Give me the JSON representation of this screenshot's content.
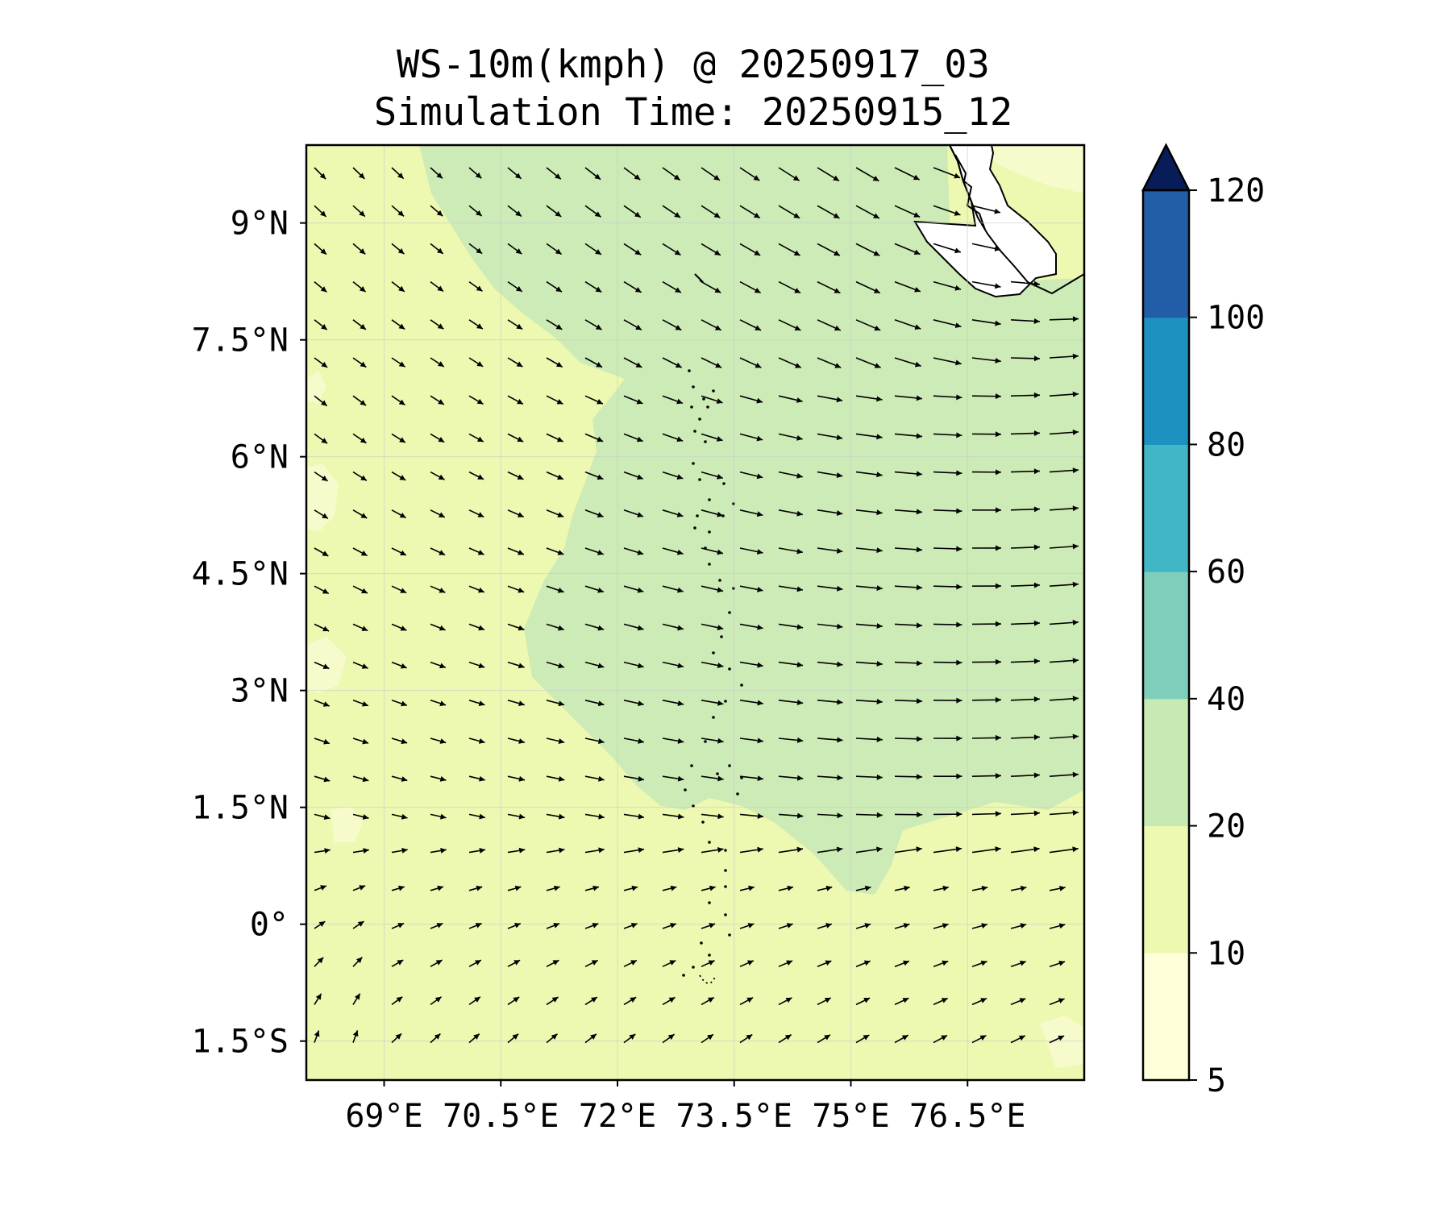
{
  "title": {
    "line1": "WS-10m(kmph) @ 20250917_03",
    "line2": "Simulation Time: 20250915_12"
  },
  "map": {
    "lon_range": [
      68.0,
      78.0
    ],
    "lat_range": [
      -2.0,
      10.0
    ],
    "x_ticks": [
      {
        "value": 69.0,
        "label": "69°E"
      },
      {
        "value": 70.5,
        "label": "70.5°E"
      },
      {
        "value": 72.0,
        "label": "72°E"
      },
      {
        "value": 73.5,
        "label": "73.5°E"
      },
      {
        "value": 75.0,
        "label": "75°E"
      },
      {
        "value": 76.5,
        "label": "76.5°E"
      }
    ],
    "y_ticks": [
      {
        "value": 9.0,
        "label": "9°N"
      },
      {
        "value": 7.5,
        "label": "7.5°N"
      },
      {
        "value": 6.0,
        "label": "6°N"
      },
      {
        "value": 4.5,
        "label": "4.5°N"
      },
      {
        "value": 3.0,
        "label": "3°N"
      },
      {
        "value": 1.5,
        "label": "1.5°N"
      },
      {
        "value": 0.0,
        "label": "0°"
      },
      {
        "value": -1.5,
        "label": "1.5°S"
      }
    ],
    "gridlines": true
  },
  "colorbar": {
    "levels": [
      {
        "value": 5,
        "label": "5"
      },
      {
        "value": 10,
        "label": "10"
      },
      {
        "value": 20,
        "label": "20"
      },
      {
        "value": 40,
        "label": "40"
      },
      {
        "value": 60,
        "label": "60"
      },
      {
        "value": 80,
        "label": "80"
      },
      {
        "value": 100,
        "label": "100"
      },
      {
        "value": 120,
        "label": "120"
      }
    ],
    "colors": [
      "#ffffd9",
      "#edf8b1",
      "#c7e9b4",
      "#7fcdbb",
      "#41b6c4",
      "#1d91c0",
      "#225ea8",
      "#0c2c84"
    ],
    "extend_color": "#081d58",
    "extend": "max"
  }
}
